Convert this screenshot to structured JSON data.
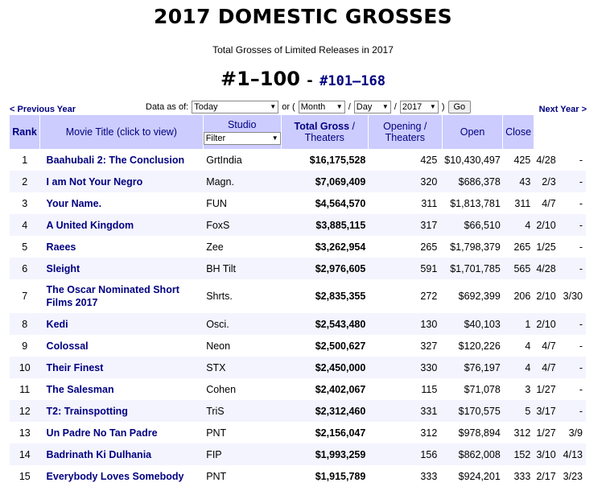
{
  "page_title": "2017 DOMESTIC GROSSES",
  "subtitle": "Total Grosses of Limited Releases in 2017",
  "range": {
    "current": "#1–100",
    "separator": "-",
    "next": "#101–168"
  },
  "nav": {
    "previous_year": "< Previous Year",
    "next_year": "Next Year >"
  },
  "controls": {
    "data_as_of_label": "Data as of:",
    "date_select": "Today",
    "or_label": "or (",
    "month_select": "Month",
    "slash1": "/",
    "day_select": "Day",
    "slash2": "/",
    "year_select": "2017",
    "close_paren": ")",
    "go_button": "Go"
  },
  "columns": {
    "rank": "Rank",
    "title": "Movie Title (click to view)",
    "studio": "Studio",
    "studio_filter": "Filter",
    "total_gross": "Total Gross",
    "total_sep": " /",
    "theaters": "Theaters",
    "opening": "Opening /",
    "opening_theaters": "Theaters",
    "open": "Open",
    "close": "Close"
  },
  "rows": [
    {
      "rank": "1",
      "title": "Baahubali 2: The Conclusion",
      "studio": "GrtIndia",
      "gross": "$16,175,528",
      "theaters": "425",
      "opening": "$10,430,497",
      "open_theaters": "425",
      "open": "4/28",
      "close": "-"
    },
    {
      "rank": "2",
      "title": "I am Not Your Negro",
      "studio": "Magn.",
      "gross": "$7,069,409",
      "theaters": "320",
      "opening": "$686,378",
      "open_theaters": "43",
      "open": "2/3",
      "close": "-"
    },
    {
      "rank": "3",
      "title": "Your Name.",
      "studio": "FUN",
      "gross": "$4,564,570",
      "theaters": "311",
      "opening": "$1,813,781",
      "open_theaters": "311",
      "open": "4/7",
      "close": "-"
    },
    {
      "rank": "4",
      "title": "A United Kingdom",
      "studio": "FoxS",
      "gross": "$3,885,115",
      "theaters": "317",
      "opening": "$66,510",
      "open_theaters": "4",
      "open": "2/10",
      "close": "-"
    },
    {
      "rank": "5",
      "title": "Raees",
      "studio": "Zee",
      "gross": "$3,262,954",
      "theaters": "265",
      "opening": "$1,798,379",
      "open_theaters": "265",
      "open": "1/25",
      "close": "-"
    },
    {
      "rank": "6",
      "title": "Sleight",
      "studio": "BH Tilt",
      "gross": "$2,976,605",
      "theaters": "591",
      "opening": "$1,701,785",
      "open_theaters": "565",
      "open": "4/28",
      "close": "-"
    },
    {
      "rank": "7",
      "title": "The Oscar Nominated Short Films 2017",
      "studio": "Shrts.",
      "gross": "$2,835,355",
      "theaters": "272",
      "opening": "$692,399",
      "open_theaters": "206",
      "open": "2/10",
      "close": "3/30"
    },
    {
      "rank": "8",
      "title": "Kedi",
      "studio": "Osci.",
      "gross": "$2,543,480",
      "theaters": "130",
      "opening": "$40,103",
      "open_theaters": "1",
      "open": "2/10",
      "close": "-"
    },
    {
      "rank": "9",
      "title": "Colossal",
      "studio": "Neon",
      "gross": "$2,500,627",
      "theaters": "327",
      "opening": "$120,226",
      "open_theaters": "4",
      "open": "4/7",
      "close": "-"
    },
    {
      "rank": "10",
      "title": "Their Finest",
      "studio": "STX",
      "gross": "$2,450,000",
      "theaters": "330",
      "opening": "$76,197",
      "open_theaters": "4",
      "open": "4/7",
      "close": "-"
    },
    {
      "rank": "11",
      "title": "The Salesman",
      "studio": "Cohen",
      "gross": "$2,402,067",
      "theaters": "115",
      "opening": "$71,078",
      "open_theaters": "3",
      "open": "1/27",
      "close": "-"
    },
    {
      "rank": "12",
      "title": "T2: Trainspotting",
      "studio": "TriS",
      "gross": "$2,312,460",
      "theaters": "331",
      "opening": "$170,575",
      "open_theaters": "5",
      "open": "3/17",
      "close": "-"
    },
    {
      "rank": "13",
      "title": "Un Padre No Tan Padre",
      "studio": "PNT",
      "gross": "$2,156,047",
      "theaters": "312",
      "opening": "$978,894",
      "open_theaters": "312",
      "open": "1/27",
      "close": "3/9"
    },
    {
      "rank": "14",
      "title": "Badrinath Ki Dulhania",
      "studio": "FIP",
      "gross": "$1,993,259",
      "theaters": "156",
      "opening": "$862,008",
      "open_theaters": "152",
      "open": "3/10",
      "close": "4/13"
    },
    {
      "rank": "15",
      "title": "Everybody Loves Somebody",
      "studio": "PNT",
      "gross": "$1,915,789",
      "theaters": "333",
      "opening": "$924,201",
      "open_theaters": "333",
      "open": "2/17",
      "close": "3/23"
    }
  ]
}
